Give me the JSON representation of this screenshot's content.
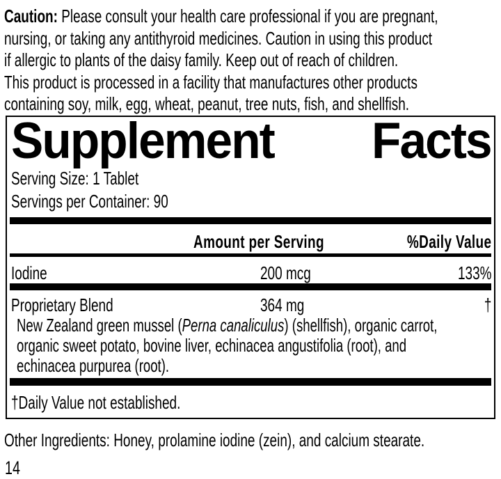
{
  "colors": {
    "text": "#000000",
    "background": "#ffffff",
    "rule": "#000000"
  },
  "caution": {
    "label": "Caution:",
    "text": " Please consult your health care professional if you are pregnant,\nnursing, or taking any antithyroid medicines. Caution in using this product\nif allergic to plants of the daisy family. Keep out of reach of children.\nThis product is processed in a facility that manufactures other products\ncontaining soy, milk, egg, wheat, peanut, tree nuts, fish, and shellfish."
  },
  "panel": {
    "title_word1": "Supplement",
    "title_word2": "Facts",
    "serving_size": "Serving Size: 1 Tablet",
    "servings_per_container": "Servings per Container: 90",
    "columns": {
      "amount": "Amount per Serving",
      "daily_value": "%Daily Value"
    },
    "rows": [
      {
        "name": "Iodine",
        "amount": "200 mcg",
        "dv": "133%"
      },
      {
        "name": "Proprietary Blend",
        "amount": "364 mg",
        "dv": "†"
      }
    ],
    "blend_description": {
      "pre": "New Zealand green mussel (",
      "italic": "Perna canaliculus",
      "post": ") (shellfish), organic carrot,\norganic sweet potato, bovine liver, echinacea angustifolia (root), and\nechinacea purpurea (root)."
    },
    "footnote": "†Daily Value not established."
  },
  "other_ingredients": "Other Ingredients: Honey, prolamine iodine (zein), and calcium stearate.",
  "page_number": "14"
}
